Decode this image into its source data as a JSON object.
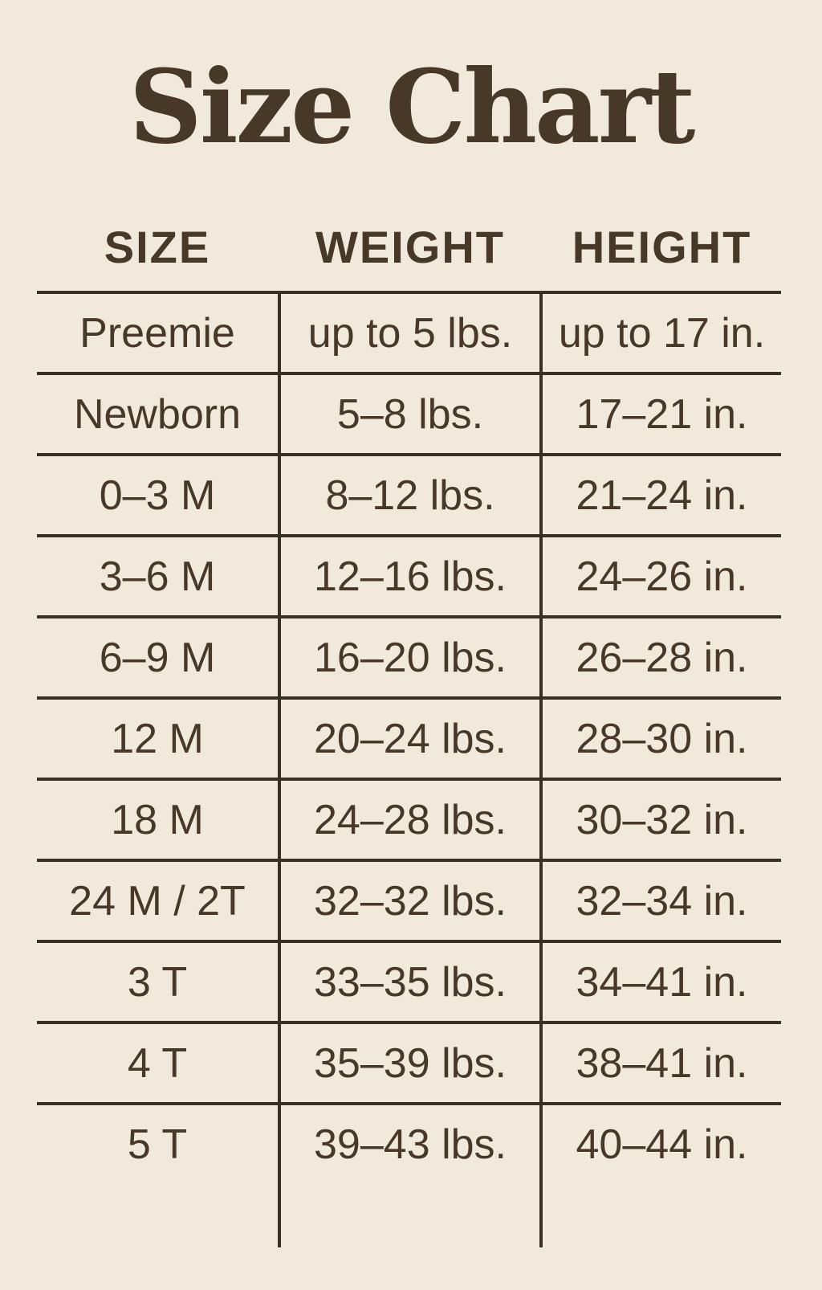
{
  "page": {
    "title": "Size Chart"
  },
  "colors": {
    "background": "#f1e9db",
    "text": "#473828",
    "line": "#3a2f25"
  },
  "table": {
    "headers": [
      "SIZE",
      "WEIGHT",
      "HEIGHT"
    ],
    "rows": [
      {
        "size": "Preemie",
        "weight": "up to 5 lbs.",
        "height": "up to 17 in."
      },
      {
        "size": "Newborn",
        "weight": "5–8 lbs.",
        "height": "17–21 in."
      },
      {
        "size": "0–3 M",
        "weight": "8–12 lbs.",
        "height": "21–24 in."
      },
      {
        "size": "3–6 M",
        "weight": "12–16 lbs.",
        "height": "24–26 in."
      },
      {
        "size": "6–9 M",
        "weight": "16–20 lbs.",
        "height": "26–28 in."
      },
      {
        "size": "12 M",
        "weight": "20–24 lbs.",
        "height": "28–30 in."
      },
      {
        "size": "18 M",
        "weight": "24–28 lbs.",
        "height": "30–32 in."
      },
      {
        "size": "24 M / 2T",
        "weight": "32–32 lbs.",
        "height": "32–34 in."
      },
      {
        "size": "3 T",
        "weight": "33–35 lbs.",
        "height": "34–41 in."
      },
      {
        "size": "4 T",
        "weight": "35–39 lbs.",
        "height": "38–41 in."
      },
      {
        "size": "5 T",
        "weight": "39–43 lbs.",
        "height": "40–44 in."
      }
    ]
  },
  "chart_data": {
    "type": "table",
    "title": "Size Chart",
    "columns": [
      "SIZE",
      "WEIGHT",
      "HEIGHT"
    ],
    "rows": [
      [
        "Preemie",
        "up to 5 lbs.",
        "up to 17 in."
      ],
      [
        "Newborn",
        "5–8 lbs.",
        "17–21 in."
      ],
      [
        "0–3 M",
        "8–12 lbs.",
        "21–24 in."
      ],
      [
        "3–6 M",
        "12–16 lbs.",
        "24–26 in."
      ],
      [
        "6–9 M",
        "16–20 lbs.",
        "26–28 in."
      ],
      [
        "12 M",
        "20–24 lbs.",
        "28–30 in."
      ],
      [
        "18 M",
        "24–28 lbs.",
        "30–32 in."
      ],
      [
        "24 M / 2T",
        "32–32 lbs.",
        "32–34 in."
      ],
      [
        "3 T",
        "33–35 lbs.",
        "34–41 in."
      ],
      [
        "4 T",
        "35–39 lbs.",
        "38–41 in."
      ],
      [
        "5 T",
        "39–43 lbs.",
        "40–44 in."
      ]
    ]
  }
}
